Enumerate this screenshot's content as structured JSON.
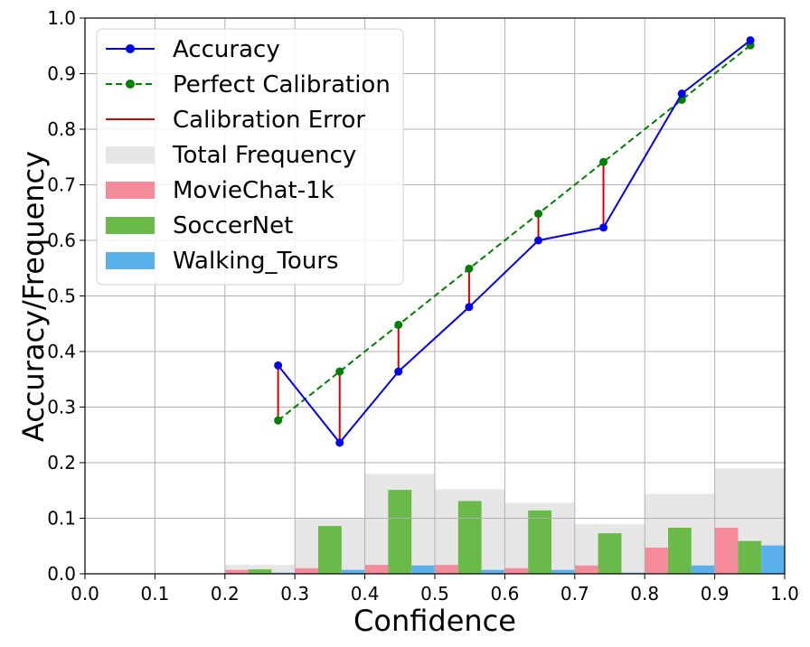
{
  "chart_data": {
    "type": "bar",
    "xlabel": "Confidence",
    "ylabel": "Accuracy/Frequency",
    "xlim": [
      0.0,
      1.0
    ],
    "ylim": [
      0.0,
      1.0
    ],
    "x_ticks": [
      "0.0",
      "0.1",
      "0.2",
      "0.3",
      "0.4",
      "0.5",
      "0.6",
      "0.7",
      "0.8",
      "0.9",
      "1.0"
    ],
    "y_ticks": [
      "0.0",
      "0.1",
      "0.2",
      "0.3",
      "0.4",
      "0.5",
      "0.6",
      "0.7",
      "0.8",
      "0.9",
      "1.0"
    ],
    "grid": true,
    "legend_position": "upper-left",
    "bins": [
      [
        0.2,
        0.3
      ],
      [
        0.3,
        0.4
      ],
      [
        0.4,
        0.5
      ],
      [
        0.5,
        0.6
      ],
      [
        0.6,
        0.7
      ],
      [
        0.7,
        0.8
      ],
      [
        0.8,
        0.9
      ],
      [
        0.9,
        1.0
      ]
    ],
    "bar_series": [
      {
        "name": "Total Frequency",
        "color": "#e6e6e6",
        "values": [
          0.016,
          0.1,
          0.18,
          0.152,
          0.128,
          0.089,
          0.144,
          0.19
        ]
      },
      {
        "name": "MovieChat-1k",
        "color": "#f48a9a",
        "values": [
          0.007,
          0.01,
          0.016,
          0.016,
          0.01,
          0.015,
          0.047,
          0.083
        ]
      },
      {
        "name": "SoccerNet",
        "color": "#6aba4a",
        "values": [
          0.008,
          0.086,
          0.151,
          0.131,
          0.114,
          0.073,
          0.083,
          0.059
        ]
      },
      {
        "name": "Walking_Tours",
        "color": "#5ab0ea",
        "values": [
          0.002,
          0.007,
          0.015,
          0.007,
          0.007,
          0.002,
          0.015,
          0.051
        ]
      }
    ],
    "line_series": [
      {
        "name": "Accuracy",
        "color": "#0000ee",
        "style": "solid-marker",
        "x": [
          0.276,
          0.364,
          0.448,
          0.549,
          0.648,
          0.741,
          0.853,
          0.951
        ],
        "y": [
          0.375,
          0.236,
          0.364,
          0.48,
          0.6,
          0.623,
          0.864,
          0.96
        ]
      },
      {
        "name": "Perfect Calibration",
        "color": "#007f00",
        "style": "dashed-marker",
        "x": [
          0.276,
          0.364,
          0.448,
          0.549,
          0.648,
          0.741,
          0.853,
          0.951
        ],
        "y": [
          0.276,
          0.364,
          0.448,
          0.549,
          0.648,
          0.741,
          0.853,
          0.951
        ]
      }
    ],
    "error_series": {
      "name": "Calibration Error",
      "color": "#dd0000"
    }
  }
}
